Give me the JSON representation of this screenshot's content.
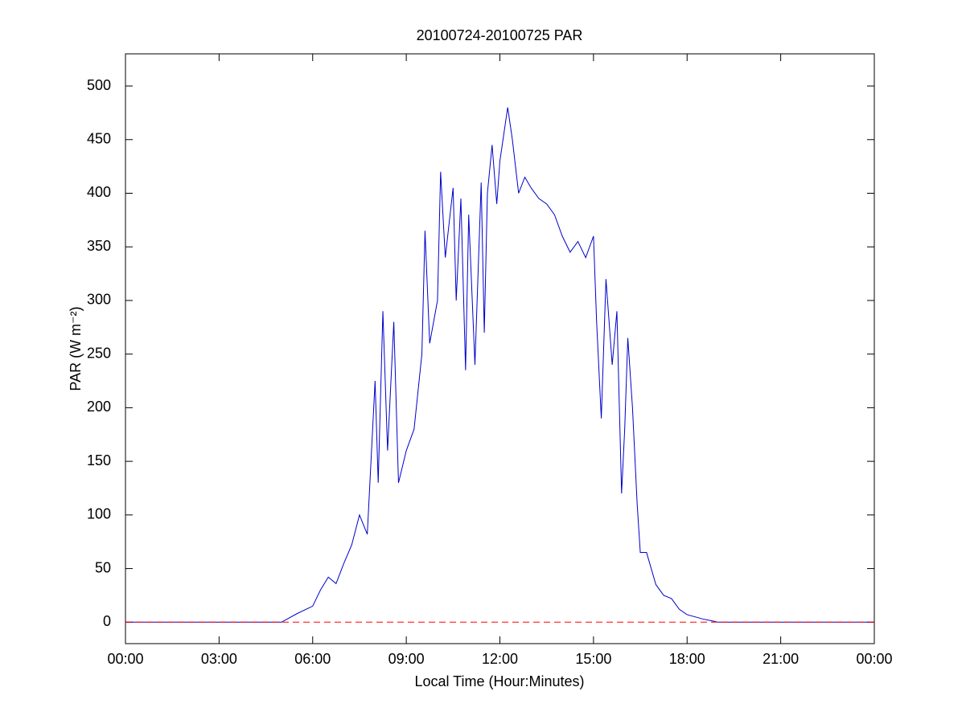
{
  "chart_data": {
    "type": "line",
    "title": "20100724-20100725 PAR",
    "x_label": "Local Time (Hour:Minutes)",
    "y_label": "PAR (W m⁻²)",
    "x": [
      0,
      5,
      5.5,
      6,
      6.25,
      6.5,
      6.75,
      7,
      7.25,
      7.5,
      7.75,
      8,
      8.1,
      8.25,
      8.4,
      8.6,
      8.75,
      9,
      9.25,
      9.5,
      9.6,
      9.75,
      10,
      10.1,
      10.25,
      10.5,
      10.6,
      10.75,
      10.9,
      11,
      11.2,
      11.4,
      11.5,
      11.6,
      11.75,
      11.9,
      12,
      12.25,
      12.4,
      12.6,
      12.8,
      13,
      13.25,
      13.5,
      13.75,
      14,
      14.25,
      14.5,
      14.75,
      15,
      15.1,
      15.25,
      15.4,
      15.6,
      15.75,
      15.9,
      16,
      16.1,
      16.25,
      16.4,
      16.5,
      16.7,
      17,
      17.25,
      17.5,
      17.75,
      18,
      18.5,
      19,
      24
    ],
    "series": [
      {
        "color": "#0000cc",
        "values": [
          0,
          0,
          8,
          15,
          30,
          42,
          36,
          55,
          72,
          100,
          82,
          225,
          130,
          290,
          160,
          280,
          130,
          160,
          180,
          250,
          365,
          260,
          300,
          420,
          340,
          405,
          300,
          395,
          235,
          380,
          240,
          410,
          270,
          400,
          445,
          390,
          430,
          480,
          450,
          400,
          415,
          405,
          395,
          390,
          380,
          360,
          345,
          355,
          340,
          360,
          280,
          190,
          320,
          240,
          290,
          120,
          180,
          265,
          200,
          110,
          65,
          65,
          35,
          25,
          22,
          12,
          7,
          3,
          0,
          0
        ]
      }
    ],
    "reference_line": {
      "y": 0,
      "color": "#ff0000",
      "style": "dashed"
    },
    "xlim": [
      0,
      24
    ],
    "ylim": [
      -20,
      530
    ],
    "xticks": [
      {
        "value": 0,
        "label": "00:00"
      },
      {
        "value": 3,
        "label": "03:00"
      },
      {
        "value": 6,
        "label": "06:00"
      },
      {
        "value": 9,
        "label": "09:00"
      },
      {
        "value": 12,
        "label": "12:00"
      },
      {
        "value": 15,
        "label": "15:00"
      },
      {
        "value": 18,
        "label": "18:00"
      },
      {
        "value": 21,
        "label": "21:00"
      },
      {
        "value": 24,
        "label": "00:00"
      }
    ],
    "yticks": [
      0,
      50,
      100,
      150,
      200,
      250,
      300,
      350,
      400,
      450,
      500
    ]
  }
}
